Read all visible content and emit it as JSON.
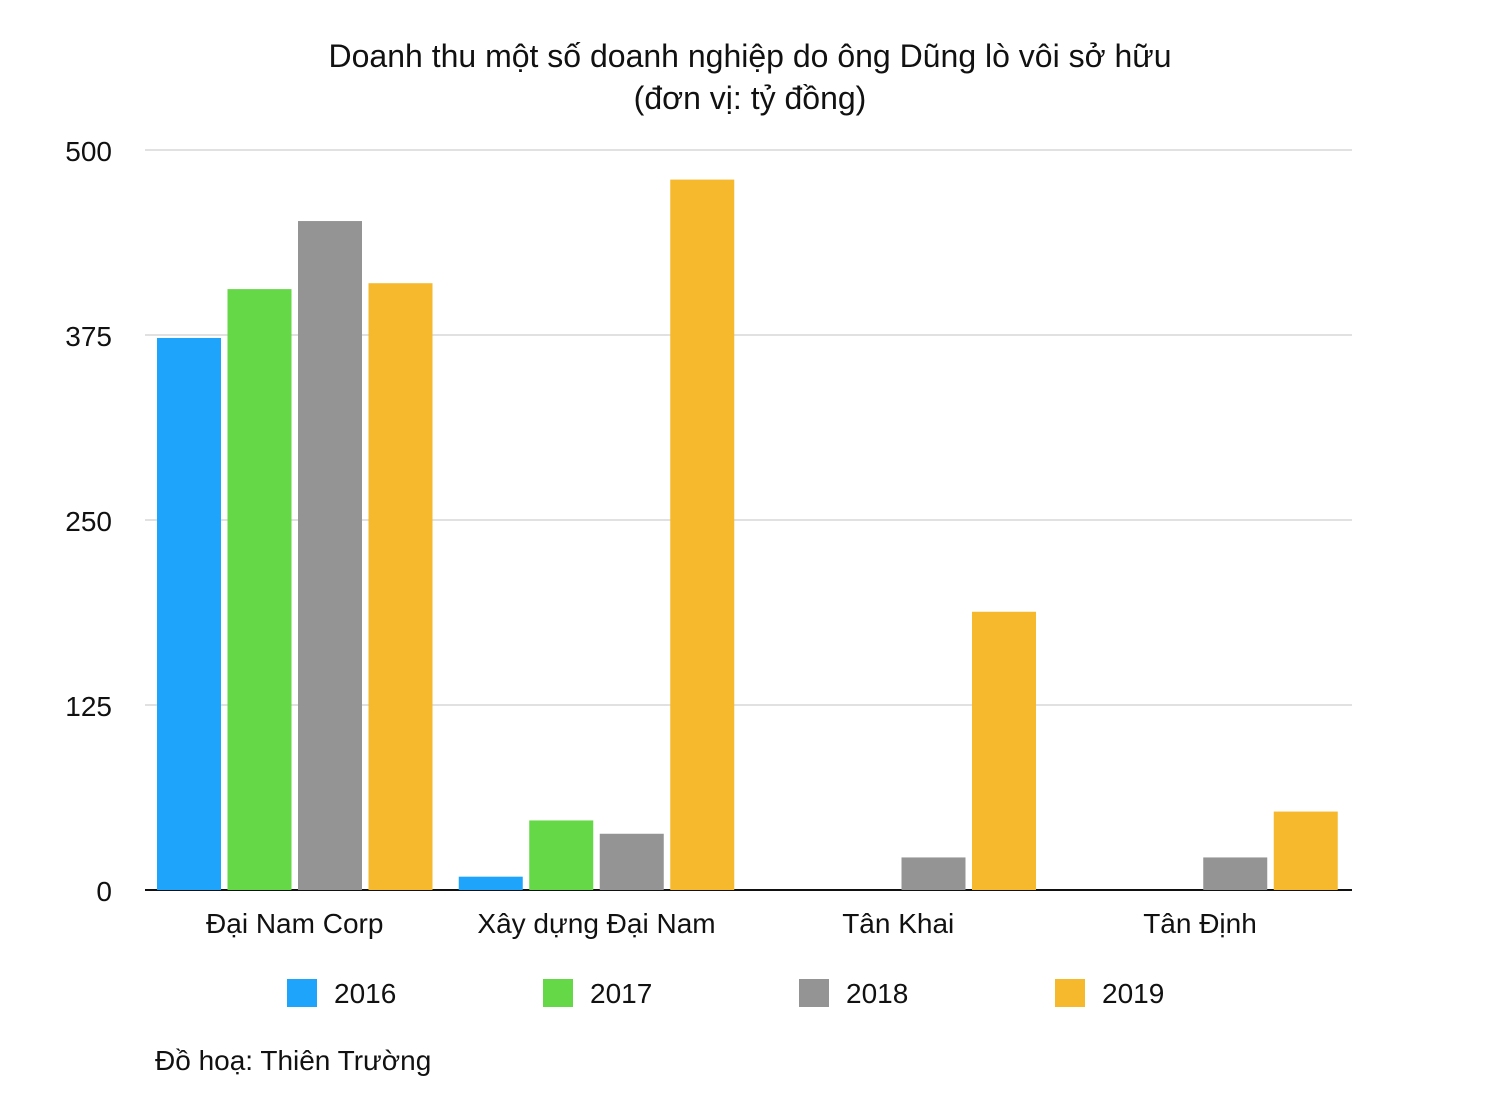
{
  "chart_data": {
    "type": "bar",
    "title_lines": [
      "Doanh thu một số doanh nghiệp do ông Dũng lò vôi sở hữu",
      "(đơn vị: tỷ đồng)"
    ],
    "categories": [
      "Đại Nam Corp",
      "Xây dựng Đại Nam",
      "Tân Khai",
      "Tân Định"
    ],
    "series": [
      {
        "name": "2016",
        "color": "#1fa4fc",
        "values": [
          373,
          9,
          0,
          0
        ]
      },
      {
        "name": "2017",
        "color": "#65d847",
        "values": [
          406,
          47,
          0,
          0
        ]
      },
      {
        "name": "2018",
        "color": "#949494",
        "values": [
          452,
          38,
          22,
          22
        ]
      },
      {
        "name": "2019",
        "color": "#f6b92e",
        "values": [
          410,
          480,
          188,
          53
        ]
      }
    ],
    "ylim": [
      0,
      500
    ],
    "yticks": [
      "0",
      "125",
      "250",
      "375",
      "500"
    ],
    "grid": true,
    "legend_position": "bottom"
  },
  "credit": "Đồ hoạ: Thiên Trường"
}
